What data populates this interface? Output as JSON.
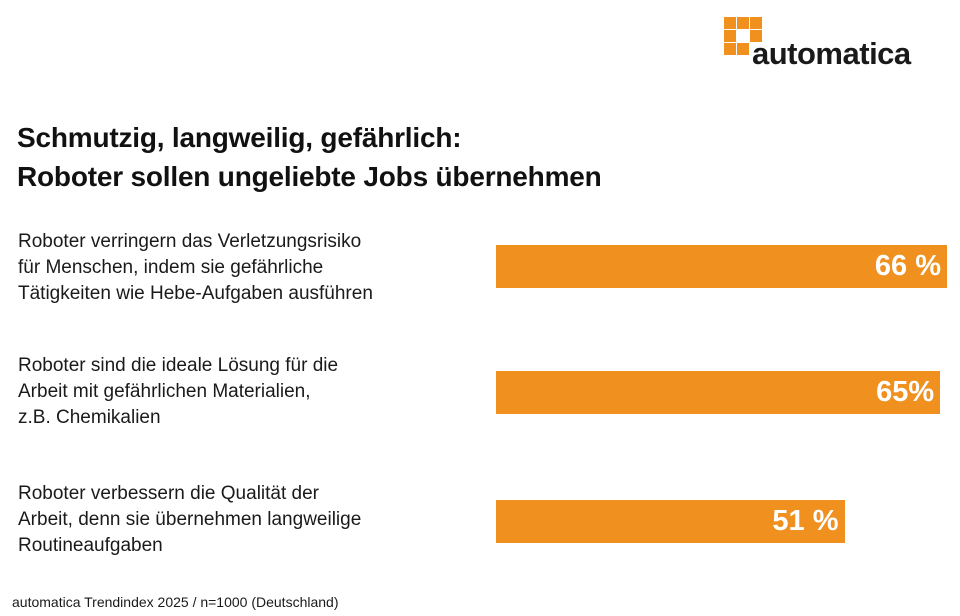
{
  "logo": {
    "text": "automatica",
    "color": "#f0901e"
  },
  "title_line1": "Schmutzig, langweilig, gefährlich:",
  "title_line2": "Roboter sollen ungeliebte Jobs übernehmen",
  "chart_data": {
    "type": "bar",
    "orientation": "horizontal",
    "categories": [
      [
        "Roboter verringern das Verletzungsrisiko",
        "für Menschen, indem sie gefährliche",
        "Tätigkeiten wie Hebe-Aufgaben ausführen"
      ],
      [
        "Roboter sind die ideale Lösung für die",
        "Arbeit mit gefährlichen Materialien,",
        "z.B. Chemikalien"
      ],
      [
        "Roboter verbessern die Qualität der",
        "Arbeit, denn sie übernehmen langweilige",
        "Routineaufgaben"
      ]
    ],
    "values": [
      66,
      65,
      51
    ],
    "value_labels": [
      "66 %",
      "65%",
      "51 %"
    ],
    "unit": "%",
    "bar_color": "#f0901e",
    "grid": false
  },
  "source": "automatica Trendindex 2025 / n=1000 (Deutschland)"
}
